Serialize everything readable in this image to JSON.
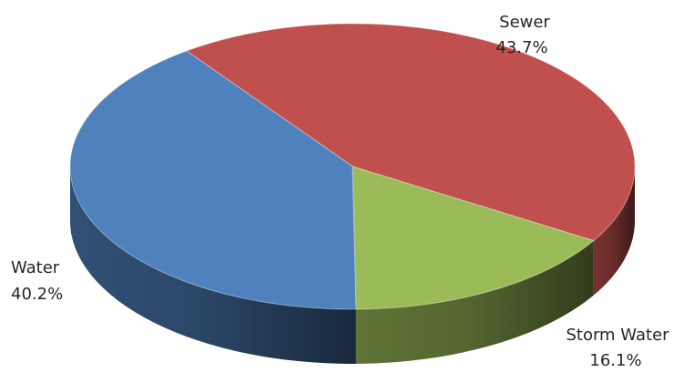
{
  "chart_data": {
    "type": "pie",
    "style": "3d",
    "title": "",
    "slices": [
      {
        "name": "Sewer",
        "label": "43.7%",
        "value": 43.7,
        "color": "#C0504D"
      },
      {
        "name": "Storm Water",
        "label": "16.1%",
        "value": 16.1,
        "color": "#9BBB59"
      },
      {
        "name": "Water",
        "label": "40.2%",
        "value": 40.2,
        "color": "#4F81BD"
      }
    ],
    "legend": "none"
  }
}
